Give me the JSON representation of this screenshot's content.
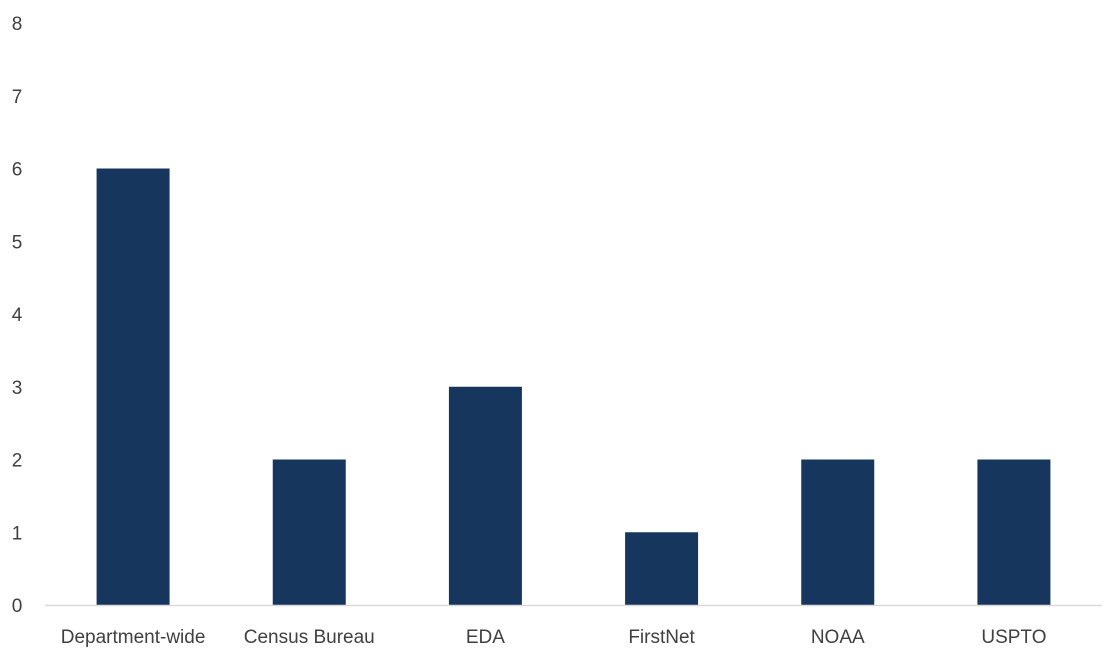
{
  "chart_data": {
    "type": "bar",
    "title": "",
    "xlabel": "",
    "ylabel": "",
    "categories": [
      "Department-wide",
      "Census Bureau",
      "EDA",
      "FirstNet",
      "NOAA",
      "USPTO"
    ],
    "values": [
      6,
      2,
      3,
      1,
      2,
      2
    ],
    "ylim": [
      0,
      8
    ],
    "yticks": [
      "0",
      "1",
      "2",
      "3",
      "4",
      "5",
      "6",
      "7",
      "8"
    ],
    "grid": false,
    "legend": "none",
    "colors": {
      "bar": "#17365d",
      "axis": "#d9d9d9",
      "text": "#404040"
    }
  }
}
